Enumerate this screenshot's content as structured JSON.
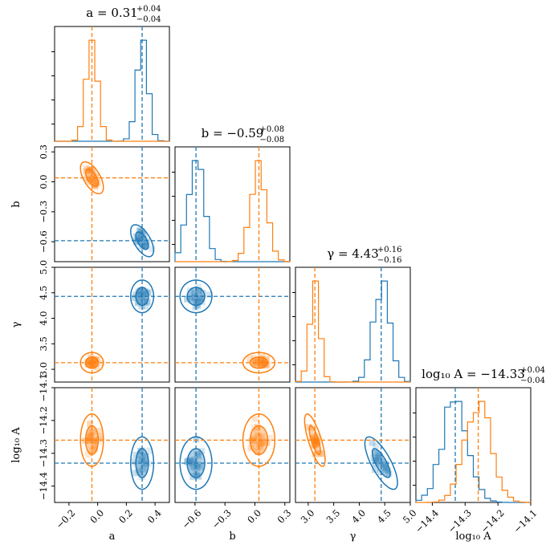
{
  "figure": {
    "colors": {
      "blue": "#1f77b4",
      "orange": "#ff7f0e"
    },
    "parameters": [
      {
        "key": "a",
        "label": "a",
        "title_text": "a = 0.31",
        "title_up": "+0.04",
        "title_down": "−0.04",
        "range": [
          -0.3,
          0.5
        ],
        "ticks": [
          -0.2,
          0.0,
          0.2,
          0.4
        ],
        "tick_labels": [
          "−0.2",
          "0.0",
          "0.2",
          "0.4"
        ]
      },
      {
        "key": "b",
        "label": "b",
        "title_text": "b = −0.59",
        "title_up": "+0.08",
        "title_down": "−0.08",
        "range": [
          -0.8,
          0.35
        ],
        "ticks": [
          -0.6,
          -0.3,
          0.0,
          0.3
        ],
        "tick_labels": [
          "−0.6",
          "−0.3",
          "0.0",
          "0.3"
        ]
      },
      {
        "key": "gamma",
        "label": "γ",
        "title_text": "γ = 4.43",
        "title_up": "+0.16",
        "title_down": "−0.16",
        "range": [
          2.75,
          5.0
        ],
        "ticks": [
          3.0,
          3.5,
          4.0,
          4.5,
          5.0
        ],
        "tick_labels": [
          "3.0",
          "3.5",
          "4.0",
          "4.5",
          "5.0"
        ]
      },
      {
        "key": "log10A",
        "label": "log₁₀ A",
        "title_text": "log₁₀ A = −14.33",
        "title_up": "+0.04",
        "title_down": "−0.04",
        "range": [
          -14.45,
          -14.1
        ],
        "ticks": [
          -14.4,
          -14.3,
          -14.2,
          -14.1
        ],
        "tick_labels": [
          "−14.4",
          "−14.3",
          "−14.2",
          "−14.1"
        ]
      }
    ]
  },
  "chart_data": {
    "type": "corner",
    "description_of_series": "two posterior sample sets (blue, orange); dashed lines mark medians",
    "series": [
      {
        "color": "blue",
        "medians": {
          "a": 0.31,
          "b": -0.59,
          "gamma": 4.43,
          "log10A": -14.33
        },
        "sigmas": {
          "a": 0.04,
          "b": -0.08,
          "gamma": 0.16,
          "log10A": 0.04
        }
      },
      {
        "color": "orange",
        "medians": {
          "a": -0.04,
          "b": 0.04,
          "gamma": 3.13,
          "log10A": -14.26
        },
        "sigmas": {
          "a": 0.04,
          "b": 0.08,
          "gamma": 0.1,
          "log10A": 0.04
        }
      }
    ],
    "correlations": {
      "blue": {
        "a_b": -0.6,
        "gamma_log10A": -0.75
      },
      "orange": {
        "a_b": -0.6,
        "gamma_log10A": -0.75
      }
    }
  }
}
